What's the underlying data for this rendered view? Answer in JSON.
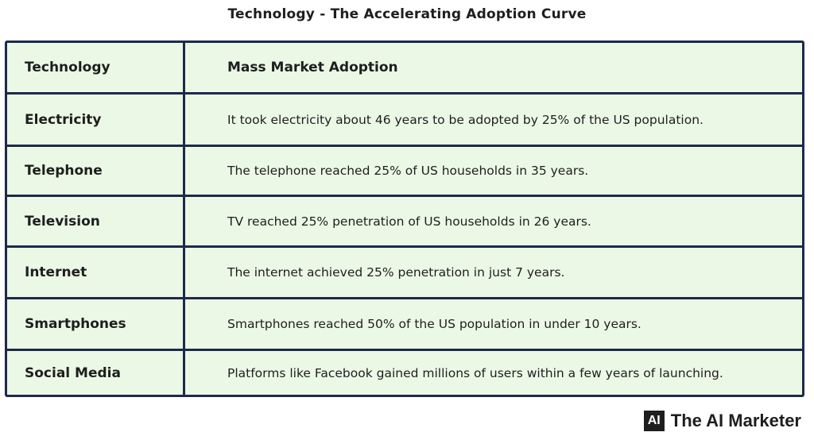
{
  "title": "Technology - The Accelerating Adoption Curve",
  "table": {
    "headers": {
      "technology": "Technology",
      "adoption": "Mass Market Adoption"
    },
    "rows": [
      {
        "technology": "Electricity",
        "adoption": "It took electricity about 46 years to be adopted by 25% of the US population."
      },
      {
        "technology": "Telephone",
        "adoption": "The telephone reached 25% of US households in 35 years."
      },
      {
        "technology": "Television",
        "adoption": "TV reached 25% penetration of US households in 26 years."
      },
      {
        "technology": "Internet",
        "adoption": "The internet achieved 25% penetration in just 7 years."
      },
      {
        "technology": "Smartphones",
        "adoption": "Smartphones reached 50% of the US population in under 10 years."
      },
      {
        "technology": "Social Media",
        "adoption": "Platforms like Facebook gained millions of users within a few years of launching."
      }
    ]
  },
  "brand": {
    "logo_text": "AI",
    "name": "The AI Marketer"
  }
}
